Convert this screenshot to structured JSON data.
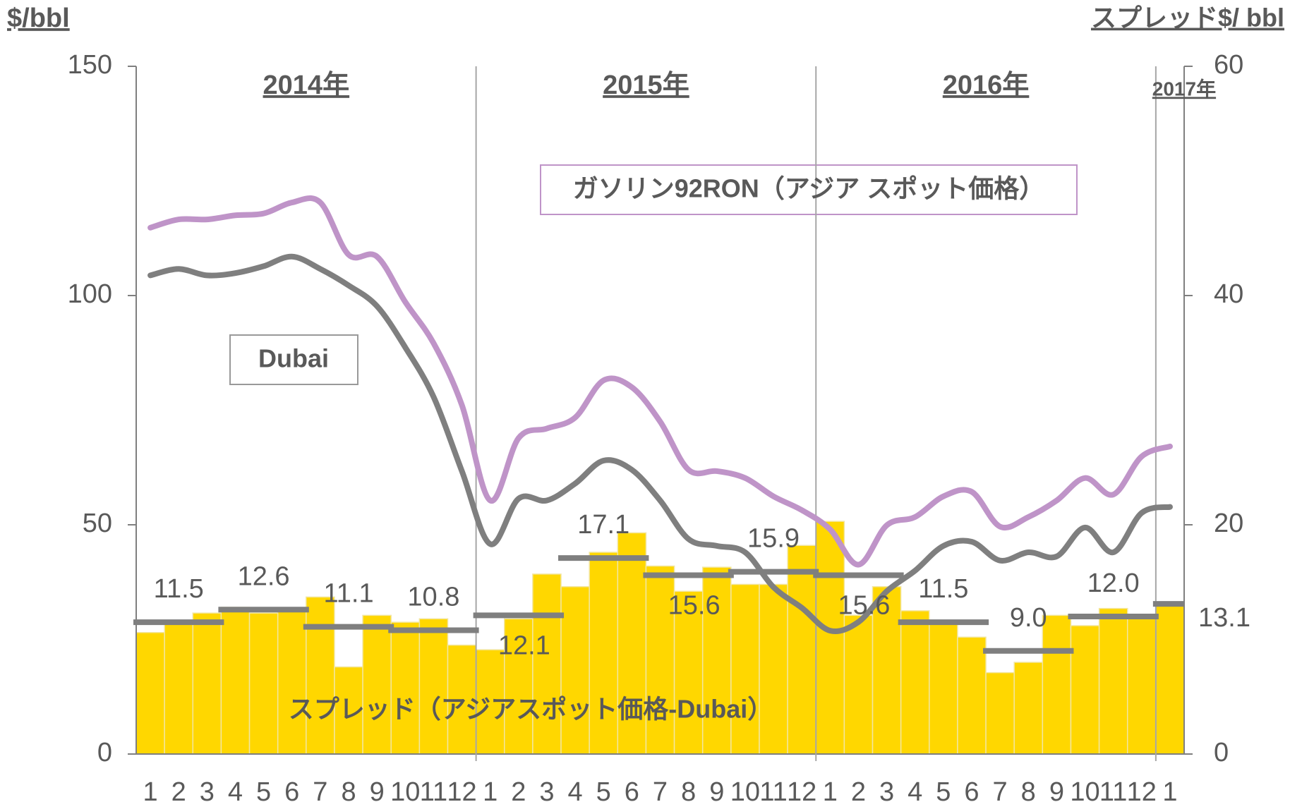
{
  "chart_data": {
    "type": "bar_line",
    "y_axis_label": "$/bbl",
    "y2_axis_label": "スプレッド$/ bbl",
    "year_labels": [
      "2014年",
      "2015年",
      "2016年",
      "2017年"
    ],
    "categories": [
      "1",
      "2",
      "3",
      "4",
      "5",
      "6",
      "7",
      "8",
      "9",
      "10",
      "11",
      "12",
      "1",
      "2",
      "3",
      "4",
      "5",
      "6",
      "7",
      "8",
      "9",
      "10",
      "11",
      "12",
      "1",
      "2",
      "3",
      "4",
      "5",
      "6",
      "7",
      "8",
      "9",
      "10",
      "11",
      "12",
      "1"
    ],
    "ylim": [
      0,
      150
    ],
    "yticks": [
      0,
      50,
      100,
      150
    ],
    "y2lim": [
      0,
      60
    ],
    "y2ticks": [
      0,
      20,
      40,
      60
    ],
    "series": [
      {
        "name": "スプレッド（アジアスポット価格-Dubai）",
        "type": "bar",
        "axis": "y2",
        "color": "#ffd700",
        "values": [
          10.6,
          11.5,
          12.3,
          12.8,
          12.3,
          12.5,
          13.7,
          7.6,
          12.1,
          11.5,
          11.8,
          9.5,
          9.1,
          11.8,
          15.7,
          14.6,
          17.6,
          19.3,
          16.4,
          14.2,
          16.3,
          14.8,
          14.8,
          18.2,
          20.3,
          12.1,
          14.6,
          12.5,
          11.5,
          10.2,
          7.1,
          8.0,
          12.1,
          11.2,
          12.7,
          12.1,
          13.1
        ]
      },
      {
        "name": "ガソリン92RON（アジア スポット価格）",
        "type": "line",
        "color": "#bf94c8",
        "values": [
          114.8,
          116.6,
          116.6,
          117.5,
          117.9,
          120.3,
          120.3,
          108.9,
          108.5,
          98.6,
          89.6,
          76.1,
          55.3,
          68.9,
          71.0,
          73.4,
          81.5,
          80.0,
          72.5,
          62.0,
          61.7,
          60.2,
          56.2,
          53.2,
          49.0,
          41.3,
          49.9,
          51.7,
          56.2,
          57.2,
          49.6,
          51.7,
          55.3,
          60.2,
          56.6,
          64.9,
          67.1
        ]
      },
      {
        "name": "Dubai",
        "type": "line",
        "color": "#7f7f7f",
        "values": [
          104.4,
          105.8,
          104.4,
          104.9,
          106.4,
          108.5,
          105.8,
          102.2,
          97.7,
          88.7,
          77.9,
          61.7,
          45.8,
          55.7,
          55.3,
          59.0,
          64.0,
          62.0,
          55.3,
          46.9,
          45.4,
          44.0,
          36.4,
          31.9,
          26.9,
          28.8,
          35.5,
          40.0,
          45.4,
          46.3,
          42.2,
          44.0,
          43.1,
          49.4,
          44.0,
          52.6,
          53.9
        ]
      }
    ],
    "quarterly_averages": {
      "axis": "y2",
      "color": "#7f7f7f",
      "values": [
        11.5,
        12.6,
        11.1,
        10.8,
        12.1,
        17.1,
        15.6,
        15.9,
        15.6,
        11.5,
        9.0,
        12.0,
        13.1
      ],
      "value_labels": [
        "11.5",
        "12.6",
        "11.1",
        "10.8",
        "12.1",
        "17.1",
        "15.6",
        "15.9",
        "15.6",
        "11.5",
        "9.0",
        "12.0",
        "13.1"
      ]
    }
  }
}
